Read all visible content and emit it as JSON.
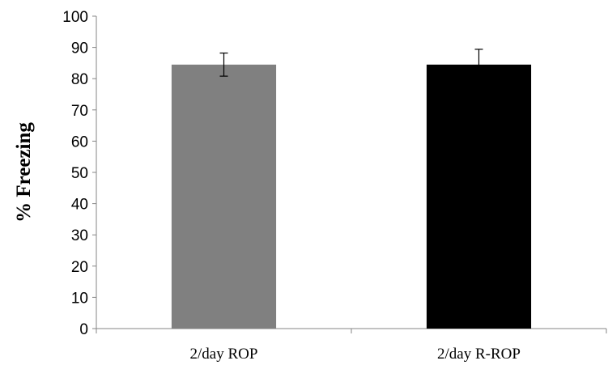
{
  "chart_data": {
    "type": "bar",
    "categories": [
      "2/day ROP",
      "2/day R-ROP"
    ],
    "values": [
      84.5,
      84.5
    ],
    "error": [
      3.7,
      4.9
    ],
    "bar_colors": [
      "#808080",
      "#000000"
    ],
    "ylabel": "% Freezing",
    "xlabel": "",
    "title": "",
    "ylim": [
      0,
      100
    ],
    "ytick_step": 10,
    "yticks": [
      "0",
      "10",
      "20",
      "30",
      "40",
      "50",
      "60",
      "70",
      "80",
      "90",
      "100"
    ],
    "grid": false,
    "legend": "none"
  }
}
